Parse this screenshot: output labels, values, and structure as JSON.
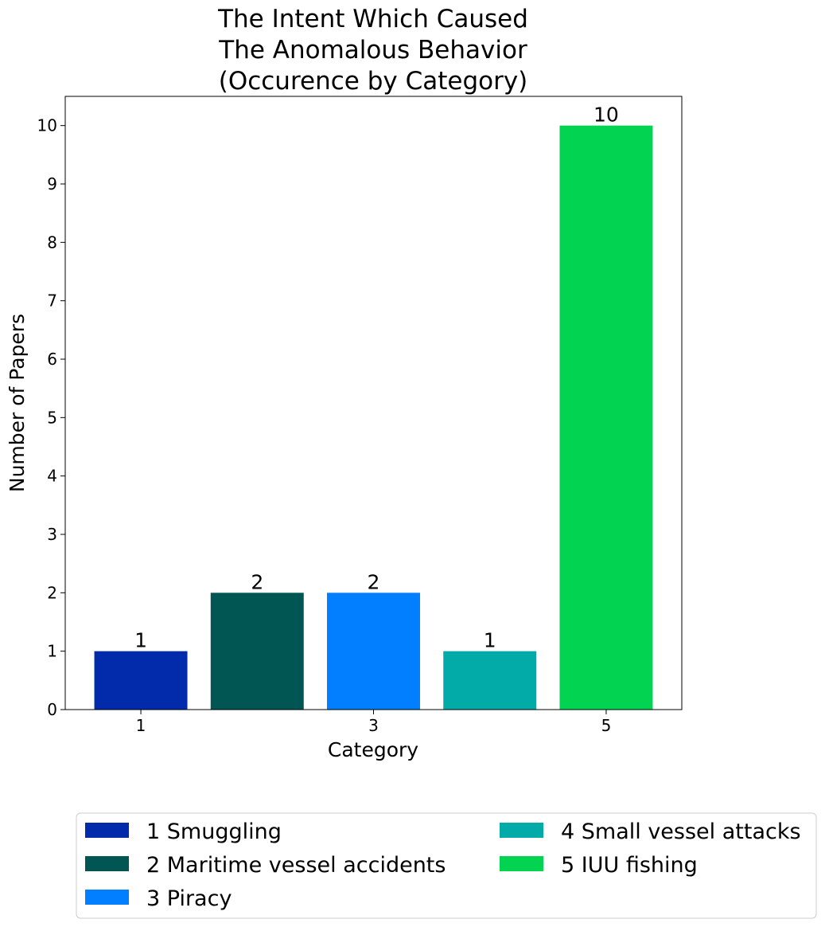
{
  "chart_data": {
    "type": "bar",
    "title": [
      "The Intent Which Caused",
      "The Anomalous Behavior",
      "(Occurence by Category)"
    ],
    "xlabel": "Category",
    "ylabel": "Number of Papers",
    "x": [
      1,
      2,
      3,
      4,
      5
    ],
    "values": [
      1,
      2,
      2,
      1,
      10
    ],
    "data_labels": [
      "1",
      "2",
      "2",
      "1",
      "10"
    ],
    "colors": [
      "#012bab",
      "#015654",
      "#027ffe",
      "#02aaa8",
      "#02d451"
    ],
    "xticks": [
      "1",
      "3",
      "5"
    ],
    "xtick_values": [
      1,
      3,
      5
    ],
    "yticks": [
      "0",
      "1",
      "2",
      "3",
      "4",
      "5",
      "6",
      "7",
      "8",
      "9",
      "10"
    ],
    "ylim": [
      0,
      10.5
    ],
    "xlim": [
      0.35,
      5.65
    ],
    "grid": false,
    "legend": {
      "placement": "bottom",
      "entries": [
        {
          "label": "1 Smuggling",
          "color": "#012bab"
        },
        {
          "label": "2 Maritime vessel accidents",
          "color": "#015654"
        },
        {
          "label": "3 Piracy",
          "color": "#027ffe"
        },
        {
          "label": "4 Small vessel attacks",
          "color": "#02aaa8"
        },
        {
          "label": "5 IUU fishing",
          "color": "#02d451"
        }
      ]
    }
  }
}
